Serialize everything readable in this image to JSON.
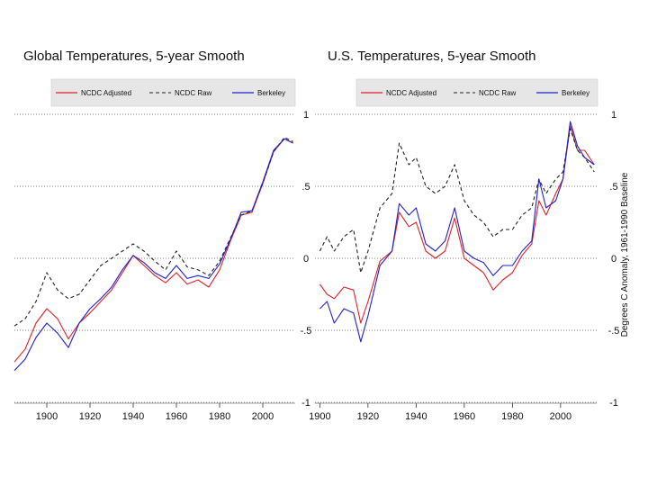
{
  "chart_data": [
    {
      "type": "line",
      "title": "Global Temperatures, 5-year Smooth",
      "ylabel": "",
      "xlim": [
        1885,
        2015
      ],
      "ylim": [
        -1,
        1
      ],
      "xticks": [
        1900,
        1920,
        1940,
        1960,
        1980,
        2000
      ],
      "yticks": [
        1,
        0.5,
        0,
        -0.5,
        -1
      ],
      "ytick_labels": [
        "1",
        ".5",
        "0",
        "-.5",
        "-1"
      ],
      "grid": "horizontal dotted",
      "legend_position": "top",
      "series": [
        {
          "name": "NCDC Adjusted",
          "color": "#e0202a",
          "dash": "solid",
          "x": [
            1885,
            1890,
            1895,
            1900,
            1905,
            1910,
            1915,
            1920,
            1925,
            1930,
            1935,
            1940,
            1945,
            1950,
            1955,
            1960,
            1965,
            1970,
            1975,
            1980,
            1985,
            1990,
            1995,
            2000,
            2005,
            2010,
            2014
          ],
          "y": [
            -0.72,
            -0.63,
            -0.45,
            -0.35,
            -0.42,
            -0.56,
            -0.45,
            -0.38,
            -0.3,
            -0.22,
            -0.1,
            0.02,
            -0.05,
            -0.12,
            -0.17,
            -0.1,
            -0.18,
            -0.15,
            -0.2,
            -0.08,
            0.12,
            0.3,
            0.32,
            0.52,
            0.74,
            0.83,
            0.8
          ]
        },
        {
          "name": "NCDC Raw",
          "color": "#222222",
          "dash": "4,3",
          "x": [
            1885,
            1890,
            1895,
            1900,
            1905,
            1910,
            1915,
            1920,
            1925,
            1930,
            1935,
            1940,
            1945,
            1950,
            1955,
            1960,
            1965,
            1970,
            1975,
            1980,
            1985,
            1990,
            1995,
            2000,
            2005,
            2010,
            2014
          ],
          "y": [
            -0.47,
            -0.42,
            -0.3,
            -0.1,
            -0.22,
            -0.28,
            -0.25,
            -0.15,
            -0.05,
            0.0,
            0.05,
            0.1,
            0.05,
            -0.02,
            -0.08,
            0.05,
            -0.06,
            -0.08,
            -0.12,
            -0.02,
            0.14,
            0.3,
            0.33,
            0.52,
            0.74,
            0.84,
            0.81
          ]
        },
        {
          "name": "Berkeley",
          "color": "#2020cc",
          "dash": "solid",
          "x": [
            1885,
            1890,
            1895,
            1900,
            1905,
            1910,
            1915,
            1920,
            1925,
            1930,
            1935,
            1940,
            1945,
            1950,
            1955,
            1960,
            1965,
            1970,
            1975,
            1980,
            1985,
            1990,
            1995,
            2000,
            2005,
            2010,
            2014
          ],
          "y": [
            -0.78,
            -0.7,
            -0.55,
            -0.45,
            -0.52,
            -0.62,
            -0.45,
            -0.35,
            -0.28,
            -0.2,
            -0.08,
            0.02,
            -0.03,
            -0.1,
            -0.14,
            -0.05,
            -0.14,
            -0.12,
            -0.14,
            -0.04,
            0.13,
            0.32,
            0.33,
            0.53,
            0.75,
            0.83,
            0.8
          ]
        }
      ]
    },
    {
      "type": "line",
      "title": "U.S. Temperatures, 5-year Smooth",
      "ylabel": "Degrees C Anomaly, 1961-1990 Baseline",
      "xlim": [
        1898,
        2015
      ],
      "ylim": [
        -1,
        1
      ],
      "xticks": [
        1900,
        1920,
        1940,
        1960,
        1980,
        2000
      ],
      "yticks": [
        1,
        0.5,
        0,
        -0.5,
        -1
      ],
      "ytick_labels": [
        "1",
        ".5",
        "0",
        "-.5",
        "-1"
      ],
      "grid": "horizontal dotted",
      "legend_position": "top",
      "series": [
        {
          "name": "NCDC Adjusted",
          "color": "#e0202a",
          "dash": "solid",
          "x": [
            1900,
            1903,
            1906,
            1910,
            1914,
            1917,
            1920,
            1925,
            1930,
            1933,
            1937,
            1940,
            1944,
            1948,
            1952,
            1956,
            1960,
            1964,
            1968,
            1972,
            1976,
            1980,
            1984,
            1988,
            1991,
            1994,
            1998,
            2001,
            2004,
            2007,
            2010,
            2014
          ],
          "y": [
            -0.18,
            -0.25,
            -0.28,
            -0.2,
            -0.22,
            -0.45,
            -0.3,
            -0.02,
            0.05,
            0.32,
            0.22,
            0.25,
            0.05,
            0.0,
            0.05,
            0.28,
            0.0,
            -0.05,
            -0.1,
            -0.22,
            -0.15,
            -0.1,
            0.02,
            0.1,
            0.4,
            0.3,
            0.45,
            0.55,
            0.92,
            0.75,
            0.75,
            0.65
          ]
        },
        {
          "name": "NCDC Raw",
          "color": "#222222",
          "dash": "4,3",
          "x": [
            1900,
            1903,
            1906,
            1910,
            1914,
            1917,
            1920,
            1925,
            1930,
            1933,
            1937,
            1940,
            1944,
            1948,
            1952,
            1956,
            1960,
            1964,
            1968,
            1972,
            1976,
            1980,
            1984,
            1988,
            1991,
            1994,
            1998,
            2001,
            2004,
            2007,
            2010,
            2014
          ],
          "y": [
            0.05,
            0.15,
            0.05,
            0.15,
            0.2,
            -0.1,
            0.05,
            0.35,
            0.45,
            0.8,
            0.65,
            0.7,
            0.5,
            0.45,
            0.5,
            0.65,
            0.4,
            0.3,
            0.25,
            0.15,
            0.2,
            0.2,
            0.3,
            0.35,
            0.55,
            0.45,
            0.55,
            0.6,
            0.9,
            0.75,
            0.7,
            0.6
          ]
        },
        {
          "name": "Berkeley",
          "color": "#2020cc",
          "dash": "solid",
          "x": [
            1900,
            1903,
            1906,
            1910,
            1914,
            1917,
            1920,
            1925,
            1930,
            1933,
            1937,
            1940,
            1944,
            1948,
            1952,
            1956,
            1960,
            1964,
            1968,
            1972,
            1976,
            1980,
            1984,
            1988,
            1991,
            1994,
            1998,
            2001,
            2004,
            2007,
            2010,
            2014
          ],
          "y": [
            -0.35,
            -0.3,
            -0.45,
            -0.35,
            -0.38,
            -0.58,
            -0.4,
            -0.05,
            0.05,
            0.38,
            0.3,
            0.35,
            0.1,
            0.05,
            0.12,
            0.35,
            0.05,
            0.0,
            -0.03,
            -0.12,
            -0.05,
            -0.05,
            0.05,
            0.12,
            0.55,
            0.35,
            0.4,
            0.55,
            0.95,
            0.78,
            0.7,
            0.65
          ]
        }
      ]
    }
  ]
}
